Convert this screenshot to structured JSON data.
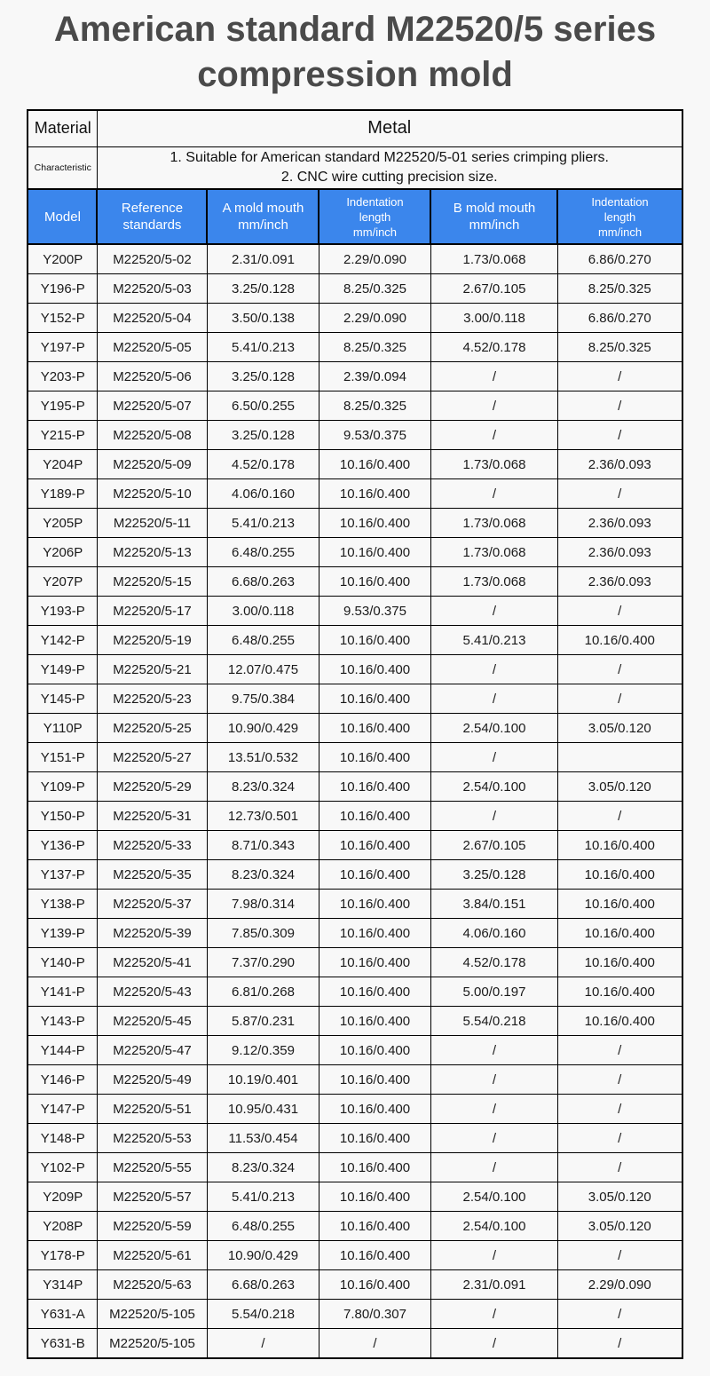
{
  "page": {
    "title": "American standard M22520/5 series compression mold"
  },
  "info": {
    "material_label": "Material",
    "material_value": "Metal",
    "characteristic_label": "Characteristic",
    "characteristic_line1": "1. Suitable for American standard M22520/5-01 series crimping pliers.",
    "characteristic_line2": "2. CNC wire cutting precision size."
  },
  "table": {
    "columns": [
      {
        "label": "Model"
      },
      {
        "label": "Reference\nstandards"
      },
      {
        "label": "A mold mouth\nmm/inch"
      },
      {
        "label": "Indentation\nlength\nmm/inch"
      },
      {
        "label": "B mold mouth\nmm/inch"
      },
      {
        "label": "Indentation\nlength\nmm/inch"
      }
    ],
    "rows": [
      [
        "Y200P",
        "M22520/5-02",
        "2.31/0.091",
        "2.29/0.090",
        "1.73/0.068",
        "6.86/0.270"
      ],
      [
        "Y196-P",
        "M22520/5-03",
        "3.25/0.128",
        "8.25/0.325",
        "2.67/0.105",
        "8.25/0.325"
      ],
      [
        "Y152-P",
        "M22520/5-04",
        "3.50/0.138",
        "2.29/0.090",
        "3.00/0.118",
        "6.86/0.270"
      ],
      [
        "Y197-P",
        "M22520/5-05",
        "5.41/0.213",
        "8.25/0.325",
        "4.52/0.178",
        "8.25/0.325"
      ],
      [
        "Y203-P",
        "M22520/5-06",
        "3.25/0.128",
        "2.39/0.094",
        "/",
        "/"
      ],
      [
        "Y195-P",
        "M22520/5-07",
        "6.50/0.255",
        "8.25/0.325",
        "/",
        "/"
      ],
      [
        "Y215-P",
        "M22520/5-08",
        "3.25/0.128",
        "9.53/0.375",
        "/",
        "/"
      ],
      [
        "Y204P",
        "M22520/5-09",
        "4.52/0.178",
        "10.16/0.400",
        "1.73/0.068",
        "2.36/0.093"
      ],
      [
        "Y189-P",
        "M22520/5-10",
        "4.06/0.160",
        "10.16/0.400",
        "/",
        "/"
      ],
      [
        "Y205P",
        "M22520/5-11",
        "5.41/0.213",
        "10.16/0.400",
        "1.73/0.068",
        "2.36/0.093"
      ],
      [
        "Y206P",
        "M22520/5-13",
        "6.48/0.255",
        "10.16/0.400",
        "1.73/0.068",
        "2.36/0.093"
      ],
      [
        "Y207P",
        "M22520/5-15",
        "6.68/0.263",
        "10.16/0.400",
        "1.73/0.068",
        "2.36/0.093"
      ],
      [
        "Y193-P",
        "M22520/5-17",
        "3.00/0.118",
        "9.53/0.375",
        "/",
        "/"
      ],
      [
        "Y142-P",
        "M22520/5-19",
        "6.48/0.255",
        "10.16/0.400",
        "5.41/0.213",
        "10.16/0.400"
      ],
      [
        "Y149-P",
        "M22520/5-21",
        "12.07/0.475",
        "10.16/0.400",
        "/",
        "/"
      ],
      [
        "Y145-P",
        "M22520/5-23",
        "9.75/0.384",
        "10.16/0.400",
        "/",
        "/"
      ],
      [
        "Y110P",
        "M22520/5-25",
        "10.90/0.429",
        "10.16/0.400",
        "2.54/0.100",
        "3.05/0.120"
      ],
      [
        "Y151-P",
        "M22520/5-27",
        "13.51/0.532",
        "10.16/0.400",
        "/",
        ""
      ],
      [
        "Y109-P",
        "M22520/5-29",
        "8.23/0.324",
        "10.16/0.400",
        "2.54/0.100",
        "3.05/0.120"
      ],
      [
        "Y150-P",
        "M22520/5-31",
        "12.73/0.501",
        "10.16/0.400",
        "/",
        "/"
      ],
      [
        "Y136-P",
        "M22520/5-33",
        "8.71/0.343",
        "10.16/0.400",
        "2.67/0.105",
        "10.16/0.400"
      ],
      [
        "Y137-P",
        "M22520/5-35",
        "8.23/0.324",
        "10.16/0.400",
        "3.25/0.128",
        "10.16/0.400"
      ],
      [
        "Y138-P",
        "M22520/5-37",
        "7.98/0.314",
        "10.16/0.400",
        "3.84/0.151",
        "10.16/0.400"
      ],
      [
        "Y139-P",
        "M22520/5-39",
        "7.85/0.309",
        "10.16/0.400",
        "4.06/0.160",
        "10.16/0.400"
      ],
      [
        "Y140-P",
        "M22520/5-41",
        "7.37/0.290",
        "10.16/0.400",
        "4.52/0.178",
        "10.16/0.400"
      ],
      [
        "Y141-P",
        "M22520/5-43",
        "6.81/0.268",
        "10.16/0.400",
        "5.00/0.197",
        "10.16/0.400"
      ],
      [
        "Y143-P",
        "M22520/5-45",
        "5.87/0.231",
        "10.16/0.400",
        "5.54/0.218",
        "10.16/0.400"
      ],
      [
        "Y144-P",
        "M22520/5-47",
        "9.12/0.359",
        "10.16/0.400",
        "/",
        "/"
      ],
      [
        "Y146-P",
        "M22520/5-49",
        "10.19/0.401",
        "10.16/0.400",
        "/",
        "/"
      ],
      [
        "Y147-P",
        "M22520/5-51",
        "10.95/0.431",
        "10.16/0.400",
        "/",
        "/"
      ],
      [
        "Y148-P",
        "M22520/5-53",
        "11.53/0.454",
        "10.16/0.400",
        "/",
        "/"
      ],
      [
        "Y102-P",
        "M22520/5-55",
        "8.23/0.324",
        "10.16/0.400",
        "/",
        "/"
      ],
      [
        "Y209P",
        "M22520/5-57",
        "5.41/0.213",
        "10.16/0.400",
        "2.54/0.100",
        "3.05/0.120"
      ],
      [
        "Y208P",
        "M22520/5-59",
        "6.48/0.255",
        "10.16/0.400",
        "2.54/0.100",
        "3.05/0.120"
      ],
      [
        "Y178-P",
        "M22520/5-61",
        "10.90/0.429",
        "10.16/0.400",
        "/",
        "/"
      ],
      [
        "Y314P",
        "M22520/5-63",
        "6.68/0.263",
        "10.16/0.400",
        "2.31/0.091",
        "2.29/0.090"
      ],
      [
        "Y631-A",
        "M22520/5-105",
        "5.54/0.218",
        "7.80/0.307",
        "/",
        "/"
      ],
      [
        "Y631-B",
        "M22520/5-105",
        "/",
        "/",
        "/",
        "/"
      ]
    ]
  },
  "colors": {
    "header_bg": "#3b86ec",
    "header_text": "#ffffff",
    "title_text": "#4a4a4a",
    "border": "#000000",
    "page_bg": "#f8f8f8"
  }
}
